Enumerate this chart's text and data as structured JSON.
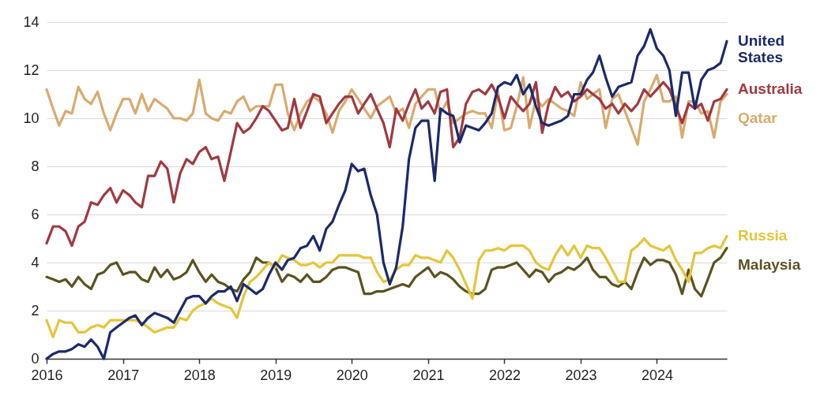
{
  "chart_data": {
    "type": "line",
    "x": [
      "2016-01",
      "2016-02",
      "2016-03",
      "2016-04",
      "2016-05",
      "2016-06",
      "2016-07",
      "2016-08",
      "2016-09",
      "2016-10",
      "2016-11",
      "2016-12",
      "2017-01",
      "2017-02",
      "2017-03",
      "2017-04",
      "2017-05",
      "2017-06",
      "2017-07",
      "2017-08",
      "2017-09",
      "2017-10",
      "2017-11",
      "2017-12",
      "2018-01",
      "2018-02",
      "2018-03",
      "2018-04",
      "2018-05",
      "2018-06",
      "2018-07",
      "2018-08",
      "2018-09",
      "2018-10",
      "2018-11",
      "2018-12",
      "2019-01",
      "2019-02",
      "2019-03",
      "2019-04",
      "2019-05",
      "2019-06",
      "2019-07",
      "2019-08",
      "2019-09",
      "2019-10",
      "2019-11",
      "2019-12",
      "2020-01",
      "2020-02",
      "2020-03",
      "2020-04",
      "2020-05",
      "2020-06",
      "2020-07",
      "2020-08",
      "2020-09",
      "2020-10",
      "2020-11",
      "2020-12",
      "2021-01",
      "2021-02",
      "2021-03",
      "2021-04",
      "2021-05",
      "2021-06",
      "2021-07",
      "2021-08",
      "2021-09",
      "2021-10",
      "2021-11",
      "2021-12",
      "2022-01",
      "2022-02",
      "2022-03",
      "2022-04",
      "2022-05",
      "2022-06",
      "2022-07",
      "2022-08",
      "2022-09",
      "2022-10",
      "2022-11",
      "2022-12",
      "2023-01",
      "2023-02",
      "2023-03",
      "2023-04",
      "2023-05",
      "2023-06",
      "2023-07",
      "2023-08",
      "2023-09",
      "2023-10",
      "2023-11",
      "2023-12",
      "2024-01",
      "2024-02",
      "2024-03",
      "2024-04",
      "2024-05",
      "2024-06",
      "2024-07",
      "2024-08",
      "2024-09",
      "2024-10",
      "2024-11",
      "2024-12"
    ],
    "series": [
      {
        "name": "Qatar",
        "color": "#d9aa6e",
        "values": [
          11.2,
          10.4,
          9.7,
          10.3,
          10.2,
          11.3,
          10.8,
          10.6,
          11.1,
          10.2,
          9.5,
          10.2,
          10.8,
          10.8,
          10.2,
          11.0,
          10.3,
          10.8,
          10.6,
          10.4,
          10.0,
          10.0,
          9.9,
          10.2,
          11.6,
          10.2,
          10.0,
          9.9,
          10.3,
          10.2,
          10.7,
          10.9,
          10.3,
          10.5,
          10.5,
          10.5,
          11.4,
          11.4,
          10.2,
          9.5,
          10.2,
          10.7,
          10.9,
          10.7,
          10.2,
          9.4,
          10.3,
          10.7,
          11.2,
          10.8,
          10.4,
          10.0,
          10.5,
          10.7,
          10.9,
          10.2,
          10.4,
          9.6,
          10.6,
          10.9,
          11.2,
          11.2,
          10.2,
          10.7,
          9.8,
          10.0,
          10.2,
          10.3,
          10.2,
          10.2,
          9.6,
          11.1,
          9.5,
          9.6,
          10.5,
          11.7,
          9.6,
          10.8,
          10.5,
          10.8,
          10.6,
          10.4,
          10.3,
          10.1,
          11.5,
          10.8,
          11.0,
          11.2,
          9.6,
          10.8,
          11.0,
          10.3,
          9.6,
          8.9,
          10.7,
          11.2,
          11.8,
          10.7,
          10.7,
          10.9,
          9.2,
          10.7,
          10.7,
          10.2,
          10.3,
          9.2,
          10.7,
          11.0
        ]
      },
      {
        "name": "Malaysia",
        "color": "#5b5320",
        "values": [
          3.4,
          3.3,
          3.2,
          3.3,
          3.0,
          3.4,
          3.1,
          2.9,
          3.5,
          3.6,
          3.9,
          4.0,
          3.5,
          3.6,
          3.6,
          3.3,
          3.2,
          3.8,
          3.4,
          3.7,
          3.3,
          3.4,
          3.6,
          4.1,
          3.6,
          3.2,
          3.5,
          3.2,
          3.1,
          2.9,
          2.8,
          3.3,
          3.6,
          4.2,
          4.0,
          4.0,
          3.8,
          3.2,
          3.5,
          3.4,
          3.2,
          3.5,
          3.2,
          3.2,
          3.4,
          3.7,
          3.8,
          3.8,
          3.7,
          3.6,
          2.7,
          2.7,
          2.8,
          2.8,
          2.9,
          3.0,
          3.1,
          3.0,
          3.4,
          3.6,
          3.8,
          3.4,
          3.6,
          3.5,
          3.3,
          3.0,
          2.8,
          2.7,
          2.7,
          2.9,
          3.7,
          3.8,
          3.8,
          3.9,
          4.0,
          3.7,
          3.4,
          3.7,
          3.6,
          3.2,
          3.5,
          3.6,
          3.8,
          3.7,
          3.9,
          4.2,
          3.7,
          3.4,
          3.4,
          3.1,
          3.0,
          3.2,
          2.9,
          3.6,
          4.2,
          3.9,
          4.1,
          4.1,
          4.0,
          3.5,
          2.7,
          3.7,
          2.9,
          2.6,
          3.3,
          4.0,
          4.2,
          4.6
        ]
      },
      {
        "name": "Russia",
        "color": "#e6c43a",
        "values": [
          1.6,
          0.9,
          1.6,
          1.5,
          1.5,
          1.1,
          1.1,
          1.3,
          1.4,
          1.3,
          1.6,
          1.6,
          1.6,
          1.6,
          1.6,
          1.5,
          1.3,
          1.1,
          1.2,
          1.3,
          1.3,
          1.7,
          1.6,
          2.0,
          2.2,
          2.3,
          2.5,
          2.3,
          2.2,
          2.1,
          1.7,
          2.6,
          3.2,
          3.4,
          3.7,
          4.0,
          3.8,
          4.3,
          4.2,
          4.1,
          3.9,
          3.9,
          4.0,
          3.8,
          4.0,
          4.0,
          4.3,
          4.3,
          4.3,
          4.3,
          4.2,
          4.2,
          3.6,
          3.2,
          3.3,
          3.7,
          3.9,
          3.9,
          4.3,
          4.2,
          4.2,
          4.1,
          4.0,
          4.5,
          4.2,
          3.7,
          3.1,
          2.5,
          4.1,
          4.5,
          4.5,
          4.6,
          4.5,
          4.7,
          4.7,
          4.7,
          4.5,
          4.0,
          3.8,
          3.7,
          4.3,
          4.7,
          4.3,
          4.7,
          4.2,
          4.7,
          4.6,
          4.6,
          4.2,
          3.7,
          3.2,
          3.2,
          4.5,
          4.7,
          5.0,
          4.7,
          4.6,
          4.5,
          4.7,
          4.1,
          3.7,
          3.2,
          4.4,
          4.4,
          4.6,
          4.7,
          4.6,
          5.1
        ]
      },
      {
        "name": "Australia",
        "color": "#a03a40",
        "values": [
          4.8,
          5.5,
          5.5,
          5.3,
          4.7,
          5.5,
          5.7,
          6.5,
          6.4,
          6.8,
          7.1,
          6.5,
          7.0,
          6.8,
          6.5,
          6.3,
          7.6,
          7.6,
          8.2,
          7.9,
          6.5,
          7.7,
          8.3,
          8.1,
          8.6,
          8.8,
          8.3,
          8.4,
          7.4,
          8.6,
          9.8,
          9.4,
          9.6,
          10.0,
          10.5,
          10.3,
          9.9,
          9.5,
          9.6,
          10.8,
          9.6,
          10.3,
          11.0,
          10.9,
          9.8,
          10.2,
          10.6,
          10.9,
          10.9,
          10.2,
          10.6,
          11.0,
          10.4,
          9.8,
          8.8,
          10.4,
          9.9,
          10.6,
          11.2,
          10.4,
          10.7,
          10.2,
          11.1,
          11.2,
          8.8,
          9.2,
          10.6,
          11.1,
          11.2,
          11.0,
          11.4,
          10.9,
          10.0,
          10.9,
          10.6,
          10.3,
          10.6,
          11.5,
          9.4,
          10.6,
          11.3,
          10.9,
          11.1,
          10.7,
          10.9,
          11.2,
          11.0,
          10.8,
          10.4,
          10.6,
          10.2,
          10.6,
          10.3,
          10.6,
          11.2,
          10.9,
          11.2,
          11.5,
          11.2,
          10.5,
          9.8,
          10.6,
          10.4,
          10.6,
          9.9,
          10.7,
          10.8,
          11.2
        ]
      },
      {
        "name": "United States",
        "color": "#1b2a6b",
        "values": [
          0.0,
          0.2,
          0.3,
          0.3,
          0.4,
          0.6,
          0.5,
          0.8,
          0.5,
          0.0,
          1.1,
          1.3,
          1.5,
          1.7,
          1.8,
          1.4,
          1.7,
          1.9,
          1.8,
          1.7,
          1.5,
          2.0,
          2.5,
          2.6,
          2.6,
          2.3,
          2.6,
          2.8,
          2.8,
          3.0,
          2.4,
          3.1,
          2.9,
          2.7,
          2.9,
          3.5,
          4.0,
          3.7,
          4.1,
          4.2,
          4.6,
          4.7,
          5.1,
          4.5,
          5.4,
          5.7,
          6.4,
          7.0,
          8.1,
          7.8,
          7.9,
          6.8,
          6.0,
          4.0,
          3.1,
          3.8,
          5.5,
          8.3,
          9.6,
          9.9,
          9.9,
          7.4,
          10.4,
          10.2,
          10.1,
          9.0,
          9.7,
          9.6,
          9.5,
          9.8,
          10.2,
          11.3,
          11.5,
          11.4,
          11.8,
          11.0,
          11.4,
          10.5,
          9.8,
          9.7,
          9.8,
          9.9,
          10.1,
          11.0,
          11.0,
          11.6,
          11.9,
          12.6,
          11.7,
          10.9,
          11.3,
          11.4,
          11.5,
          12.6,
          13.0,
          13.7,
          12.9,
          12.6,
          12.0,
          10.1,
          11.9,
          11.9,
          10.4,
          11.6,
          12.0,
          12.1,
          12.3,
          13.2
        ]
      }
    ],
    "xlim": [
      "2016-01",
      "2024-12"
    ],
    "xticks": [
      "2016",
      "2017",
      "2018",
      "2019",
      "2020",
      "2021",
      "2022",
      "2023",
      "2024"
    ],
    "ylim": [
      0,
      14
    ],
    "yticks": [
      0,
      2,
      4,
      6,
      8,
      10,
      12,
      14
    ],
    "grid": "y",
    "legend": false,
    "line_style": "solid",
    "marker": "none"
  }
}
